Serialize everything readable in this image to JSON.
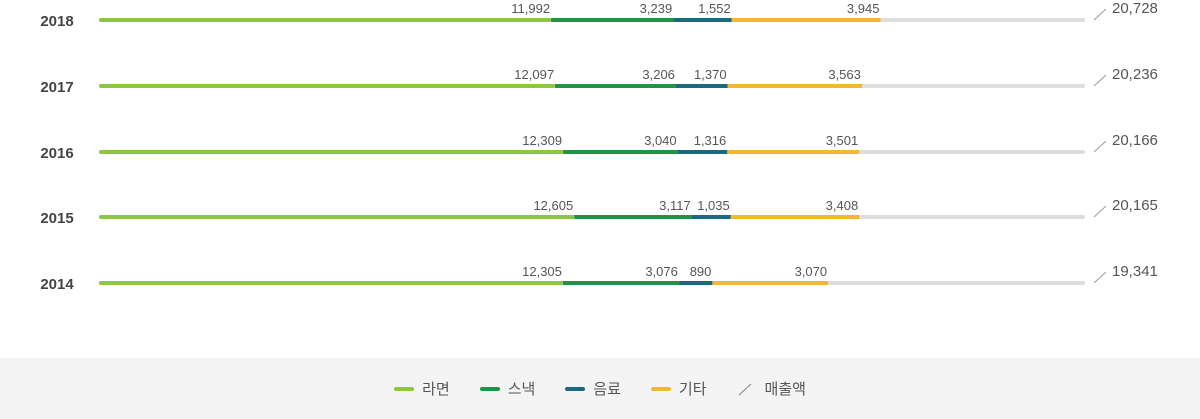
{
  "chart_data": {
    "type": "bar",
    "orientation": "horizontal",
    "stacked": true,
    "categories": [
      "2018",
      "2017",
      "2016",
      "2015",
      "2014"
    ],
    "series": [
      {
        "name": "라면",
        "values": [
          11992,
          12097,
          12309,
          12605,
          12305
        ],
        "value_labels": [
          "11,992",
          "12,097",
          "12,309",
          "12,605",
          "12,305"
        ],
        "color": "#8dc63f"
      },
      {
        "name": "스낵",
        "values": [
          3239,
          3206,
          3040,
          3117,
          3076
        ],
        "value_labels": [
          "3,239",
          "3,206",
          "3,040",
          "3,117",
          "3,076"
        ],
        "color": "#1e9447"
      },
      {
        "name": "음료",
        "values": [
          1552,
          1370,
          1316,
          1035,
          890
        ],
        "value_labels": [
          "1,552",
          "1,370",
          "1,316",
          "1,035",
          "890"
        ],
        "color": "#1a6a7d"
      },
      {
        "name": "기타",
        "values": [
          3945,
          3563,
          3501,
          3408,
          3070
        ],
        "value_labels": [
          "3,945",
          "3,563",
          "3,501",
          "3,408",
          "3,070"
        ],
        "color": "#f4b731"
      }
    ],
    "totals": {
      "name": "매출액",
      "values": [
        20728,
        20236,
        20166,
        20165,
        19341
      ],
      "value_labels": [
        "20,728",
        "20,236",
        "20,166",
        "20,165",
        "19,341"
      ]
    },
    "track_color": "#dddddd",
    "legend_position": "bottom"
  },
  "legend": [
    {
      "label": "라면",
      "color": "#8dc63f",
      "kind": "line"
    },
    {
      "label": "스낵",
      "color": "#1e9447",
      "kind": "line"
    },
    {
      "label": "음료",
      "color": "#1a6a7d",
      "kind": "line"
    },
    {
      "label": "기타",
      "color": "#f4b731",
      "kind": "line"
    },
    {
      "label": "매출액",
      "color": "#999999",
      "kind": "slash"
    }
  ]
}
